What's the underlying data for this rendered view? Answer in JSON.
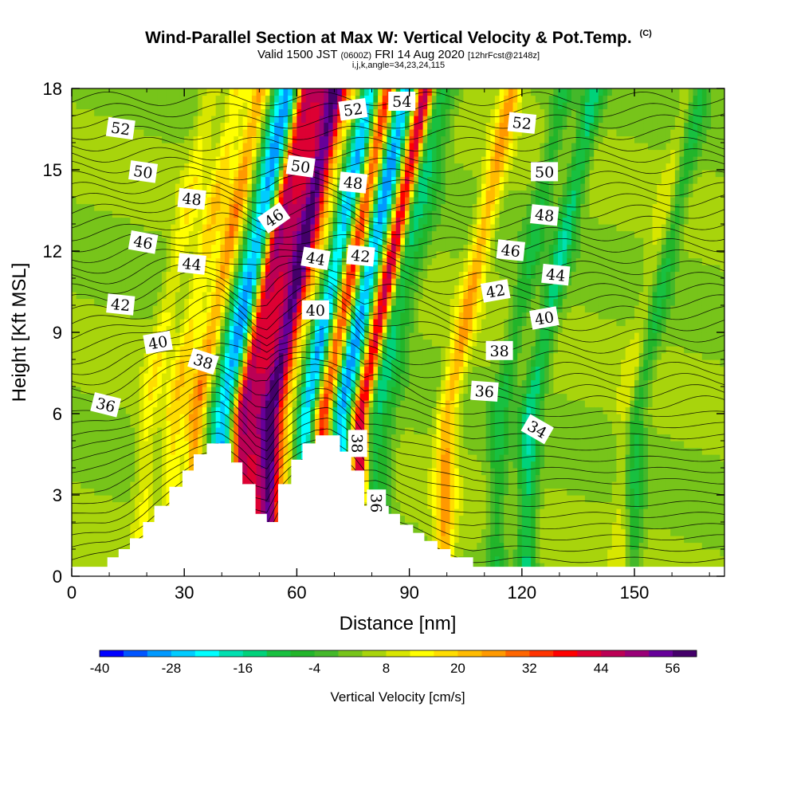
{
  "header": {
    "title_main": "Wind-Parallel Section at Max W: Vertical Velocity & Pot.Temp.",
    "title_mark": "(C)",
    "valid_prefix": "Valid 1500 JST",
    "valid_z": "(0600Z)",
    "valid_date": "FRI 14 Aug 2020",
    "valid_fcst": "[12hrFcst@2148z]",
    "params": "i,j,k,angle=34,23,24,115"
  },
  "chart_data": {
    "type": "contour",
    "xlabel": "Distance [nm]",
    "ylabel": "Height [Kft MSL]",
    "xlim": [
      0,
      174
    ],
    "ylim": [
      0,
      18
    ],
    "xticks": [
      0,
      30,
      60,
      90,
      120,
      150
    ],
    "yticks": [
      0,
      3,
      6,
      9,
      12,
      15,
      18
    ],
    "colorbar": {
      "title": "Vertical Velocity [cm/s]",
      "min": -40,
      "max": 60,
      "step": 4,
      "labels": [
        -40,
        -28,
        -16,
        -4,
        8,
        20,
        32,
        44,
        56
      ],
      "colors": [
        "#0000ff",
        "#0055ff",
        "#0099ff",
        "#00ccff",
        "#00ffff",
        "#00e0b0",
        "#00d27a",
        "#18c040",
        "#22b52a",
        "#44b82a",
        "#77c41a",
        "#a8d40c",
        "#d8e600",
        "#ffff00",
        "#ffdd00",
        "#ffbb00",
        "#ff9900",
        "#ff6600",
        "#ff3300",
        "#ff0000",
        "#dd0033",
        "#bb0055",
        "#990077",
        "#660099",
        "#44006a"
      ]
    },
    "velocity_bands": [
      {
        "x": 20,
        "v": 10
      },
      {
        "x": 27,
        "v": 14
      },
      {
        "x": 33,
        "v": 22
      },
      {
        "x": 38,
        "v": -14
      },
      {
        "x": 41,
        "v": -30
      },
      {
        "x": 45,
        "v": 40
      },
      {
        "x": 49,
        "v": 30
      },
      {
        "x": 53,
        "v": 50
      },
      {
        "x": 57,
        "v": 12
      },
      {
        "x": 61,
        "v": -10
      },
      {
        "x": 63,
        "v": -26
      },
      {
        "x": 67,
        "v": 36
      },
      {
        "x": 71,
        "v": -30
      },
      {
        "x": 74,
        "v": -16
      },
      {
        "x": 77,
        "v": 50
      },
      {
        "x": 80,
        "v": -22
      },
      {
        "x": 84,
        "v": -8
      },
      {
        "x": 100,
        "v": 20
      },
      {
        "x": 114,
        "v": -12
      },
      {
        "x": 122,
        "v": -18
      },
      {
        "x": 148,
        "v": 10
      },
      {
        "x": 150,
        "v": -16
      }
    ],
    "terrain": [
      [
        0,
        0.35
      ],
      [
        9.5,
        0.7
      ],
      [
        12.5,
        1.0
      ],
      [
        15.5,
        1.4
      ],
      [
        19,
        2.0
      ],
      [
        22,
        2.6
      ],
      [
        26,
        3.3
      ],
      [
        29.5,
        3.9
      ],
      [
        32.5,
        4.5
      ],
      [
        36,
        4.9
      ],
      [
        39.5,
        4.9
      ],
      [
        42.5,
        4.2
      ],
      [
        45.5,
        3.4
      ],
      [
        49,
        2.3
      ],
      [
        52,
        2.0
      ],
      [
        55,
        3.4
      ],
      [
        58.5,
        4.3
      ],
      [
        61.5,
        4.9
      ],
      [
        65,
        5.2
      ],
      [
        68.5,
        5.2
      ],
      [
        71.5,
        4.6
      ],
      [
        74.5,
        3.9
      ],
      [
        78,
        2.6
      ],
      [
        81,
        2.6
      ],
      [
        84.5,
        2.3
      ],
      [
        87.5,
        1.9
      ],
      [
        91,
        1.6
      ],
      [
        94,
        1.3
      ],
      [
        97.5,
        1.0
      ],
      [
        101,
        0.7
      ],
      [
        107,
        0.35
      ],
      [
        174,
        0.35
      ]
    ],
    "theta_labels": [
      {
        "text": "52",
        "x": 13,
        "y": 16.5,
        "rot": -8
      },
      {
        "text": "50",
        "x": 19,
        "y": 14.9,
        "rot": -8
      },
      {
        "text": "48",
        "x": 32,
        "y": 13.9,
        "rot": -6
      },
      {
        "text": "46",
        "x": 19,
        "y": 12.3,
        "rot": -10
      },
      {
        "text": "44",
        "x": 32,
        "y": 11.5,
        "rot": -6
      },
      {
        "text": "42",
        "x": 13,
        "y": 10.0,
        "rot": -6
      },
      {
        "text": "40",
        "x": 23,
        "y": 8.6,
        "rot": 10
      },
      {
        "text": "38",
        "x": 35,
        "y": 7.9,
        "rot": -18
      },
      {
        "text": "36",
        "x": 9,
        "y": 6.3,
        "rot": -14
      },
      {
        "text": "46",
        "x": 54,
        "y": 13.2,
        "rot": 35
      },
      {
        "text": "44",
        "x": 65,
        "y": 11.7,
        "rot": -10
      },
      {
        "text": "40",
        "x": 65,
        "y": 9.8,
        "rot": 0
      },
      {
        "text": "50",
        "x": 61,
        "y": 15.1,
        "rot": -8
      },
      {
        "text": "48",
        "x": 75,
        "y": 14.5,
        "rot": -6
      },
      {
        "text": "42",
        "x": 77,
        "y": 11.8,
        "rot": -6
      },
      {
        "text": "52",
        "x": 75,
        "y": 17.2,
        "rot": 8
      },
      {
        "text": "54",
        "x": 88,
        "y": 17.5,
        "rot": 0
      },
      {
        "text": "38",
        "x": 76,
        "y": 4.9,
        "rot": -90
      },
      {
        "text": "36",
        "x": 81,
        "y": 2.7,
        "rot": -90
      },
      {
        "text": "52",
        "x": 120,
        "y": 16.7,
        "rot": -6
      },
      {
        "text": "50",
        "x": 126,
        "y": 14.9,
        "rot": 0
      },
      {
        "text": "48",
        "x": 126,
        "y": 13.3,
        "rot": -6
      },
      {
        "text": "46",
        "x": 117,
        "y": 12.0,
        "rot": -6
      },
      {
        "text": "44",
        "x": 129,
        "y": 11.1,
        "rot": -6
      },
      {
        "text": "42",
        "x": 113,
        "y": 10.5,
        "rot": 10
      },
      {
        "text": "40",
        "x": 126,
        "y": 9.5,
        "rot": 10
      },
      {
        "text": "38",
        "x": 114,
        "y": 8.3,
        "rot": 0
      },
      {
        "text": "36",
        "x": 110,
        "y": 6.8,
        "rot": -4
      },
      {
        "text": "34",
        "x": 124,
        "y": 5.4,
        "rot": -30
      }
    ]
  }
}
